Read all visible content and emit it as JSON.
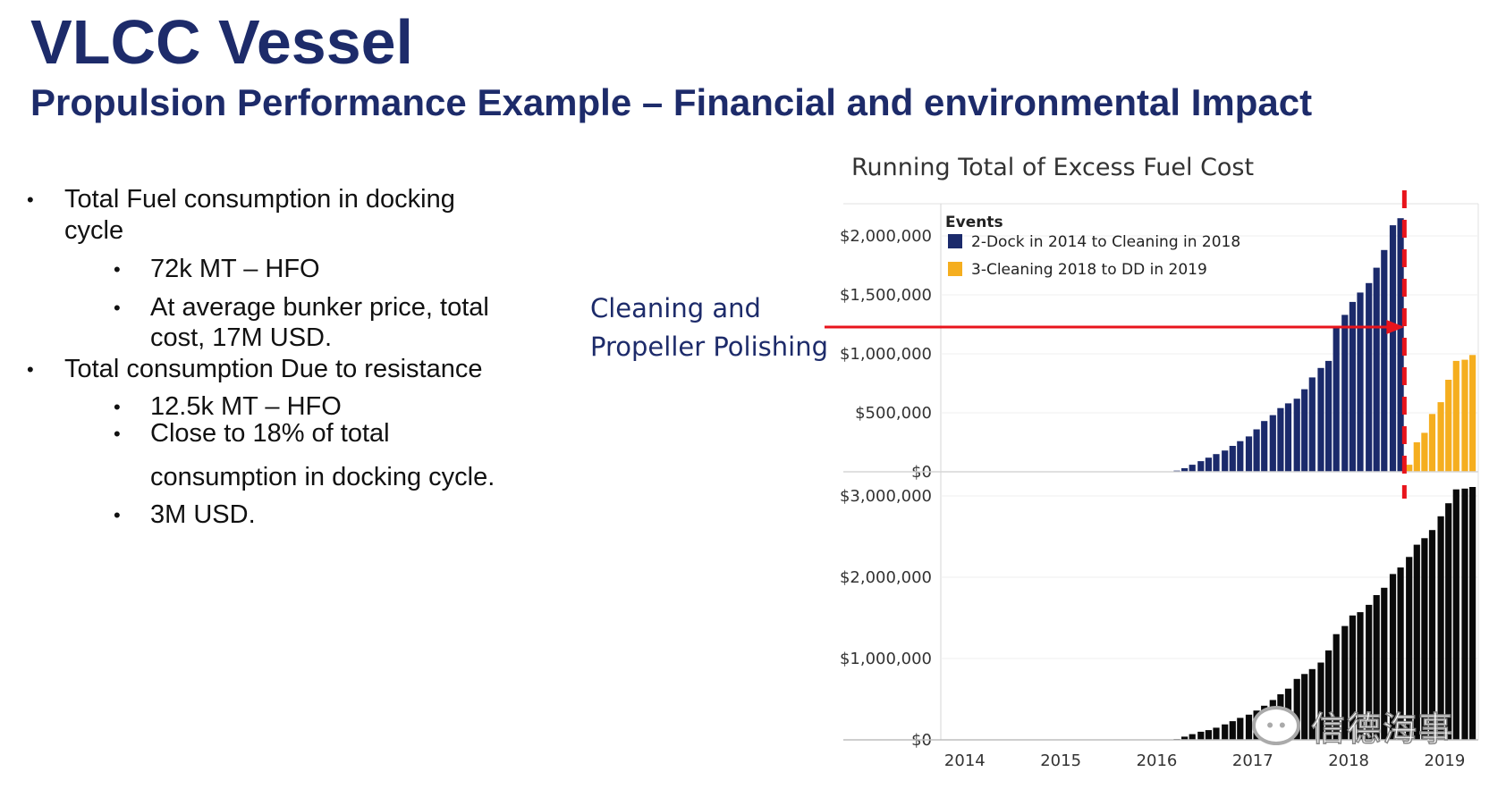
{
  "header": {
    "title": "VLCC Vessel",
    "subtitle": "Propulsion Performance Example – Financial and environmental Impact"
  },
  "bullets": {
    "b1_line1": "Total Fuel consumption in docking",
    "b1_line2": "cycle",
    "b1a": "72k MT – HFO",
    "b1b_line1": "At average bunker price, total",
    "b1b_line2": "cost, 17M USD.",
    "b2": "Total consumption Due to resistance",
    "b2a": "12.5k MT – HFO",
    "b2b_line1": "Close to 18% of total",
    "b2b_line2": "consumption in docking cycle.",
    "b2c": "3M USD."
  },
  "annotation": {
    "line1": "Cleaning and",
    "line2": "Propeller Polishing"
  },
  "watermark": {
    "text": "信德海事"
  },
  "colors": {
    "title": "#1d2b6a",
    "series_dock": "#1b2a6b",
    "series_cleaning": "#f5ae1f",
    "total": "#0a0a0a",
    "marker_red": "#e8141c"
  },
  "chart_data": [
    {
      "type": "bar",
      "title": "Running Total of Excess Fuel Cost",
      "x_axis_ticks": [
        "2014",
        "2015",
        "2016",
        "2017",
        "2018",
        "2019"
      ],
      "x_range": [
        2013.75,
        2019.35
      ],
      "ylim": [
        0,
        2300000
      ],
      "yticks": [
        {
          "value": 0,
          "label": "$0"
        },
        {
          "value": 500000,
          "label": "$500,000"
        },
        {
          "value": 1000000,
          "label": "$1,000,000"
        },
        {
          "value": 1500000,
          "label": "$1,500,000"
        },
        {
          "value": 2000000,
          "label": "$2,000,000"
        }
      ],
      "legend": {
        "title": "Events",
        "placement": "top-left"
      },
      "series": [
        {
          "name": "2-Dock in 2014 to Cleaning in 2018",
          "color": "#1b2a6b",
          "x": [
            2016.21,
            2016.29,
            2016.37,
            2016.46,
            2016.54,
            2016.62,
            2016.71,
            2016.79,
            2016.87,
            2016.96,
            2017.04,
            2017.12,
            2017.21,
            2017.29,
            2017.37,
            2017.46,
            2017.54,
            2017.62,
            2017.71,
            2017.79,
            2017.87,
            2017.96,
            2018.04,
            2018.12,
            2018.21,
            2018.29,
            2018.37,
            2018.46,
            2018.54
          ],
          "values": [
            10000,
            30000,
            60000,
            90000,
            120000,
            150000,
            180000,
            220000,
            260000,
            300000,
            360000,
            430000,
            480000,
            540000,
            580000,
            620000,
            700000,
            800000,
            880000,
            940000,
            1220000,
            1330000,
            1440000,
            1520000,
            1600000,
            1730000,
            1880000,
            2090000,
            2150000
          ]
        },
        {
          "name": "3-Cleaning 2018 to DD in 2019",
          "color": "#f5ae1f",
          "x": [
            2018.63,
            2018.71,
            2018.79,
            2018.87,
            2018.96,
            2019.04,
            2019.12,
            2019.21,
            2019.29
          ],
          "values": [
            60000,
            250000,
            330000,
            490000,
            590000,
            780000,
            940000,
            950000,
            990000
          ]
        }
      ]
    },
    {
      "type": "bar",
      "x_axis_ticks": [
        "2014",
        "2015",
        "2016",
        "2017",
        "2018",
        "2019"
      ],
      "x_range": [
        2013.75,
        2019.35
      ],
      "ylim": [
        0,
        3200000
      ],
      "yticks": [
        {
          "value": 0,
          "label": "$0"
        },
        {
          "value": 1000000,
          "label": "$1,000,000"
        },
        {
          "value": 2000000,
          "label": "$2,000,000"
        },
        {
          "value": 3000000,
          "label": "$3,000,000"
        }
      ],
      "series": [
        {
          "color": "#0a0a0a",
          "x": [
            2016.21,
            2016.29,
            2016.37,
            2016.46,
            2016.54,
            2016.62,
            2016.71,
            2016.79,
            2016.87,
            2016.96,
            2017.04,
            2017.12,
            2017.21,
            2017.29,
            2017.37,
            2017.46,
            2017.54,
            2017.62,
            2017.71,
            2017.79,
            2017.87,
            2017.96,
            2018.04,
            2018.12,
            2018.21,
            2018.29,
            2018.37,
            2018.46,
            2018.54,
            2018.63,
            2018.71,
            2018.79,
            2018.87,
            2018.96,
            2019.04,
            2019.12,
            2019.21,
            2019.29
          ],
          "values": [
            10000,
            40000,
            70000,
            100000,
            120000,
            150000,
            190000,
            230000,
            270000,
            310000,
            360000,
            420000,
            490000,
            560000,
            630000,
            750000,
            810000,
            870000,
            950000,
            1100000,
            1300000,
            1400000,
            1530000,
            1570000,
            1660000,
            1780000,
            1870000,
            2040000,
            2120000,
            2250000,
            2400000,
            2480000,
            2580000,
            2750000,
            2910000,
            3080000,
            3090000,
            3110000
          ]
        }
      ]
    }
  ]
}
